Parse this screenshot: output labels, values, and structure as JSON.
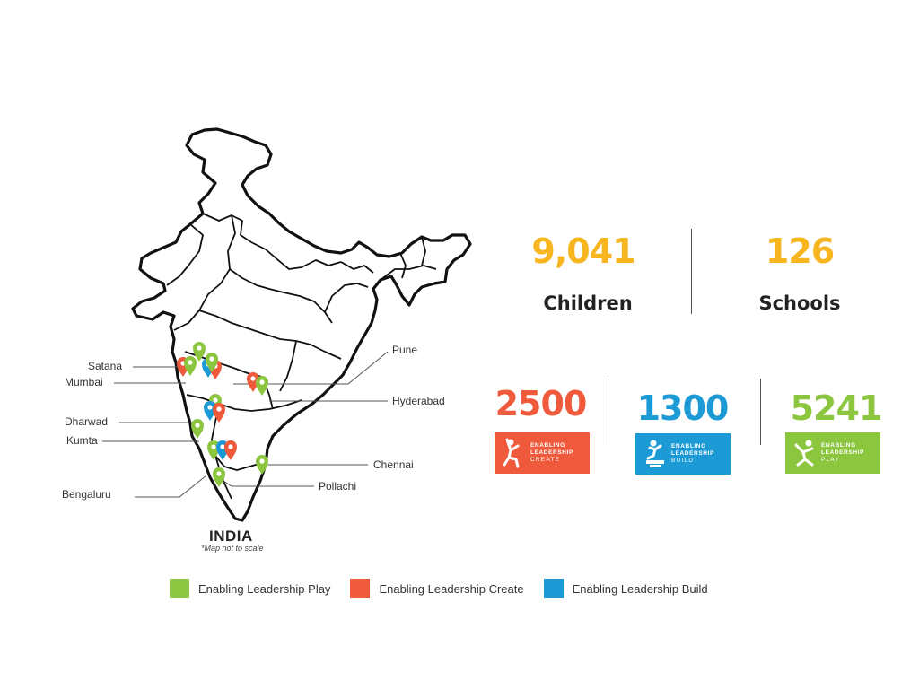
{
  "map": {
    "title": "INDIA",
    "note": "*Map not to scale",
    "cities": {
      "satana": "Satana",
      "mumbai": "Mumbai",
      "dharwad": "Dharwad",
      "kumta": "Kumta",
      "bengaluru": "Bengaluru",
      "pune": "Pune",
      "hyderabad": "Hyderabad",
      "chennai": "Chennai",
      "pollachi": "Pollachi"
    },
    "marker_colors": {
      "play": "#8cc63f",
      "create": "#f05a3c",
      "build": "#1b9ad6"
    }
  },
  "stats": {
    "children": {
      "value": "9,041",
      "label": "Children",
      "color": "#f7b520"
    },
    "schools": {
      "value": "126",
      "label": "Schools",
      "color": "#f7b520"
    }
  },
  "programs": {
    "create": {
      "value": "2500",
      "color": "#f05a3c",
      "line1": "ENABLING",
      "line2": "LEADERSHIP",
      "line3": "CREATE"
    },
    "build": {
      "value": "1300",
      "color": "#1b9ad6",
      "line1": "ENABLING",
      "line2": "LEADERSHIP",
      "line3": "BUILD"
    },
    "play": {
      "value": "5241",
      "color": "#8cc63f",
      "line1": "ENABLING",
      "line2": "LEADERSHIP",
      "line3": "PLAY"
    }
  },
  "legend": {
    "play": "Enabling Leadership Play",
    "create": "Enabling Leadership Create",
    "build": "Enabling Leadership Build"
  }
}
